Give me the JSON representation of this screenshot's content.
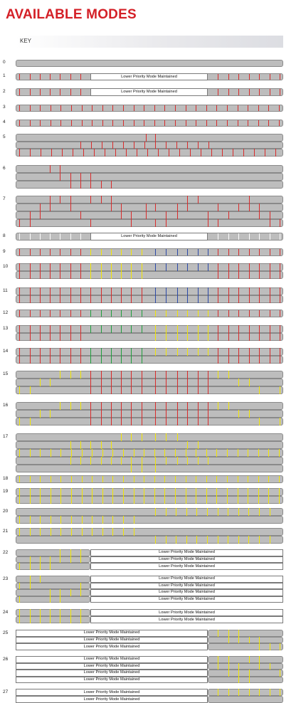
{
  "title": "AVAILABLE MODES",
  "key_label": "KEY",
  "maintained_text": "Lower Priority Mode Maintained",
  "colors": {
    "brand_red": "#d42027",
    "strip_gray": "#bdbdbd",
    "red": "#d92b2b",
    "yellow": "#f2e600",
    "green": "#1e9e3c",
    "blue": "#2b49a8",
    "white": "#ffffff"
  },
  "modes": [
    {
      "number": "0"
    },
    {
      "number": "1",
      "maintained_lines": 1
    },
    {
      "number": "2",
      "maintained_lines": 1
    },
    {
      "number": "3"
    },
    {
      "number": "4"
    },
    {
      "number": "5"
    },
    {
      "number": "6"
    },
    {
      "number": "7"
    },
    {
      "number": "8",
      "maintained_lines": 1
    },
    {
      "number": "9"
    },
    {
      "number": "10"
    },
    {
      "number": "11"
    },
    {
      "number": "12"
    },
    {
      "number": "13"
    },
    {
      "number": "14"
    },
    {
      "number": "15"
    },
    {
      "number": "16"
    },
    {
      "number": "17"
    },
    {
      "number": "18"
    },
    {
      "number": "19"
    },
    {
      "number": "20"
    },
    {
      "number": "21"
    },
    {
      "number": "22",
      "maintained_lines": 3
    },
    {
      "number": "23",
      "maintained_lines": 4
    },
    {
      "number": "24",
      "maintained_lines": 2
    },
    {
      "number": "25",
      "maintained_lines": 3
    },
    {
      "number": "26",
      "maintained_lines": 4
    },
    {
      "number": "27",
      "maintained_lines": 2
    }
  ]
}
